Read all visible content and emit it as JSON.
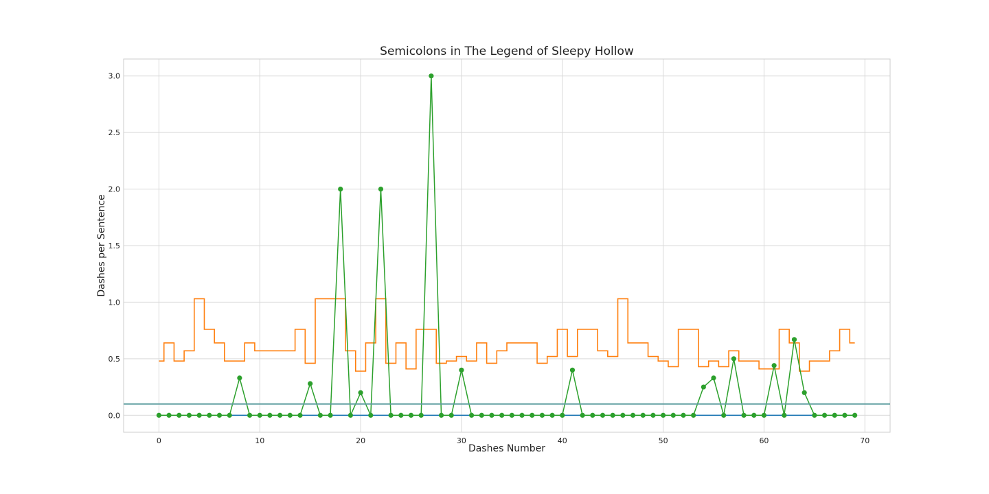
{
  "chart_data": {
    "type": "line",
    "title": "Semicolons in The Legend of Sleepy Hollow",
    "xlabel": "Dashes Number",
    "ylabel": "Dashes per Sentence",
    "xlim": [
      -3.5,
      72.5
    ],
    "ylim": [
      -0.15,
      3.15
    ],
    "x_ticks": [
      0,
      10,
      20,
      30,
      40,
      50,
      60,
      70
    ],
    "y_ticks": [
      0.0,
      0.5,
      1.0,
      1.5,
      2.0,
      2.5,
      3.0
    ],
    "x_tick_labels": [
      "0",
      "10",
      "20",
      "30",
      "40",
      "50",
      "60",
      "70"
    ],
    "y_tick_labels": [
      "0.0",
      "0.5",
      "1.0",
      "1.5",
      "2.0",
      "2.5",
      "3.0"
    ],
    "grid": true,
    "legend": "none",
    "colors": {
      "baseline": "#1f77b4",
      "step": "#ff7f0e",
      "points": "#2ca02c",
      "threshold": "#5f9ea0"
    },
    "series": [
      {
        "type": "line",
        "color": "#1f77b4",
        "x": [
          0,
          69
        ],
        "values": [
          0,
          0
        ]
      },
      {
        "type": "step",
        "color": "#ff7f0e",
        "values": [
          0.48,
          0.64,
          0.48,
          0.57,
          1.03,
          0.76,
          0.64,
          0.48,
          0.48,
          0.64,
          0.57,
          0.57,
          0.57,
          0.57,
          0.76,
          0.46,
          1.03,
          1.03,
          1.03,
          0.57,
          0.39,
          0.64,
          1.03,
          0.46,
          0.64,
          0.41,
          0.76,
          0.76,
          0.46,
          0.48,
          0.52,
          0.48,
          0.64,
          0.46,
          0.57,
          0.64,
          0.64,
          0.64,
          0.46,
          0.52,
          0.76,
          0.52,
          0.76,
          0.76,
          0.57,
          0.52,
          1.03,
          0.64,
          0.64,
          0.52,
          0.48,
          0.43,
          0.76,
          0.76,
          0.43,
          0.48,
          0.43,
          0.57,
          0.48,
          0.48,
          0.41,
          0.41,
          0.76,
          0.64,
          0.39,
          0.48,
          0.48,
          0.57,
          0.76,
          0.64
        ]
      },
      {
        "type": "line-markers",
        "color": "#2ca02c",
        "values": [
          0,
          0,
          0,
          0,
          0,
          0,
          0,
          0,
          0.33,
          0,
          0,
          0,
          0,
          0,
          0,
          0.28,
          0,
          0,
          2.0,
          0,
          0.2,
          0,
          2.0,
          0,
          0,
          0,
          0,
          3.0,
          0,
          0,
          0.4,
          0,
          0,
          0,
          0,
          0,
          0,
          0,
          0,
          0,
          0,
          0.4,
          0,
          0,
          0,
          0,
          0,
          0,
          0,
          0,
          0,
          0,
          0,
          0,
          0.25,
          0.33,
          0,
          0.5,
          0,
          0,
          0,
          0.44,
          0,
          0.67,
          0.2,
          0,
          0,
          0,
          0,
          0
        ]
      },
      {
        "type": "hline",
        "color": "#5f9ea0",
        "value": 0.1
      }
    ]
  }
}
